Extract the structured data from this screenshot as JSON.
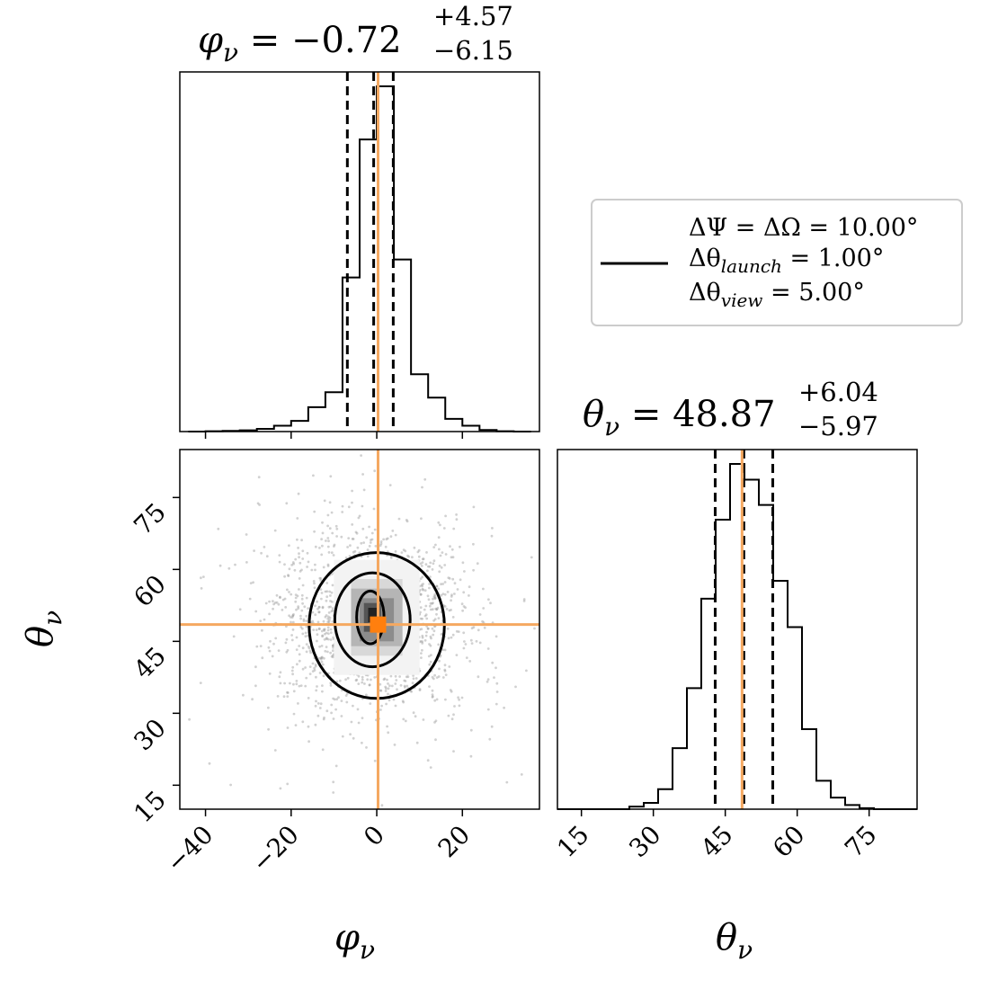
{
  "colors": {
    "truth": "#f5a860",
    "truth_marker": "#ff7f0e",
    "line": "#000000",
    "points": "#9a9a9a",
    "frame": "#000000"
  },
  "titles": {
    "phi": {
      "sym": "φ",
      "sub": "ν",
      "value": " = −0.72",
      "plus": "+4.57",
      "minus": "−6.15"
    },
    "theta": {
      "sym": "θ",
      "sub": "ν",
      "value": " = 48.87",
      "plus": "+6.04",
      "minus": "−5.97"
    }
  },
  "axis_labels": {
    "phi": {
      "sym": "φ",
      "sub": "ν"
    },
    "theta": {
      "sym": "θ",
      "sub": "ν"
    }
  },
  "legend": {
    "line1": "ΔΨ = ΔΩ = 10.00°",
    "line2_sym": "Δθ",
    "line2_sub": "launch",
    "line2_val": " = 1.00°",
    "line3_sym": "Δθ",
    "line3_sub": "view",
    "line3_val": " = 5.00°"
  },
  "chart_data": {
    "type": "corner",
    "parameters": [
      "phi_nu",
      "theta_nu"
    ],
    "truth": {
      "phi_nu": 0.3,
      "theta_nu": 48.5
    },
    "phi_hist": {
      "xlim": [
        -46,
        38
      ],
      "xticks": [
        -40,
        -20,
        0,
        20
      ],
      "edges": [
        -44,
        -40,
        -36,
        -32,
        -28,
        -24,
        -20,
        -16,
        -12,
        -8,
        -4,
        0,
        4,
        8,
        12,
        16,
        20,
        24,
        28,
        32,
        36
      ],
      "counts": [
        0,
        3,
        6,
        12,
        25,
        55,
        100,
        230,
        370,
        1450,
        2750,
        3250,
        1620,
        540,
        320,
        120,
        55,
        15,
        3,
        0
      ],
      "quantiles": [
        -6.87,
        -0.72,
        3.85
      ]
    },
    "theta_hist": {
      "xlim": [
        10,
        85
      ],
      "xticks": [
        15,
        30,
        45,
        60,
        75
      ],
      "edges": [
        10,
        13,
        16,
        19,
        22,
        25,
        28,
        31,
        34,
        37,
        40,
        43,
        46,
        49,
        52,
        55,
        58,
        61,
        64,
        67,
        70,
        73,
        76,
        79,
        82,
        85
      ],
      "counts": [
        0,
        0,
        0,
        0,
        0,
        25,
        60,
        190,
        580,
        1150,
        2000,
        2750,
        3280,
        3130,
        2890,
        2170,
        1730,
        760,
        270,
        110,
        40,
        10,
        0,
        0,
        0
      ],
      "quantiles": [
        42.9,
        48.87,
        54.91
      ]
    },
    "scatter_2d": {
      "xlim": [
        -46,
        38
      ],
      "ylim": [
        10,
        85
      ],
      "xticks": [
        -40,
        -20,
        0,
        20
      ],
      "yticks": [
        15,
        30,
        45,
        60,
        75
      ],
      "center": [
        -1.5,
        49.5
      ],
      "contours": [
        {
          "level": "inner",
          "rx": 3.2,
          "ry": 5.5,
          "cx": -1.5,
          "cy": 50.0
        },
        {
          "level": "middle",
          "rx": 8.8,
          "ry": 9.8,
          "cx": -1.0,
          "cy": 49.5
        },
        {
          "level": "outer",
          "rx": 15.8,
          "ry": 15.2,
          "cx": 0.0,
          "cy": 48.3
        }
      ]
    }
  }
}
